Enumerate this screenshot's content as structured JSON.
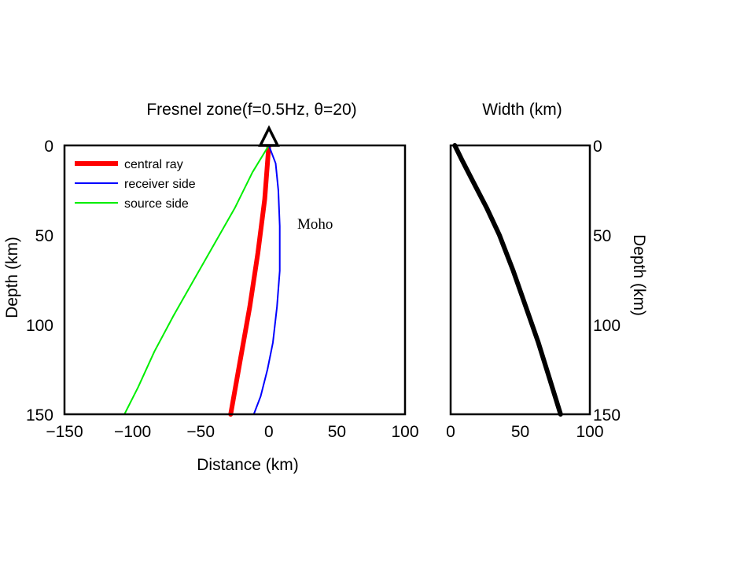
{
  "chart_data": [
    {
      "type": "line",
      "title": "Fresnel zone(f=0.5Hz, θ=20)",
      "xlabel": "Distance (km)",
      "ylabel": "Depth (km)",
      "xlim": [
        -150,
        100
      ],
      "ylim": [
        0,
        150
      ],
      "y_inverted": true,
      "grid": false,
      "legend_position": "top-left",
      "xticks": [
        "−150",
        "−100",
        "−50",
        "0",
        "50",
        "100"
      ],
      "yticks": [
        "0",
        "50",
        "100",
        "150"
      ],
      "station_marker": {
        "shape": "triangle",
        "x": 0,
        "y": 0
      },
      "annotation": "Moho",
      "series": [
        {
          "name": "central ray",
          "color": "#ff0000",
          "x": [
            0,
            -3,
            -8,
            -14,
            -21,
            -28
          ],
          "y": [
            0,
            30,
            60,
            90,
            120,
            150
          ]
        },
        {
          "name": "receiver side",
          "color": "#0000ff",
          "x": [
            0,
            5,
            7,
            8,
            8,
            6,
            3,
            -1,
            -6,
            -11
          ],
          "y": [
            0,
            10,
            25,
            45,
            70,
            90,
            110,
            125,
            140,
            150
          ]
        },
        {
          "name": "source side",
          "color": "#00ee00",
          "x": [
            0,
            -12,
            -25,
            -40,
            -55,
            -70,
            -84,
            -96,
            -106
          ],
          "y": [
            0,
            15,
            35,
            55,
            75,
            95,
            115,
            135,
            150
          ]
        }
      ]
    },
    {
      "type": "line",
      "title": "Width (km)",
      "ylabel": "Depth (km)",
      "xlim": [
        0,
        100
      ],
      "ylim": [
        0,
        150
      ],
      "y_inverted": true,
      "grid": false,
      "xticks": [
        "0",
        "50",
        "100"
      ],
      "yticks": [
        "0",
        "50",
        "100",
        "150"
      ],
      "series": [
        {
          "color": "#000000",
          "x": [
            3,
            8,
            16,
            26,
            35,
            45,
            54,
            63,
            71,
            79
          ],
          "y": [
            0,
            8,
            20,
            35,
            50,
            70,
            90,
            110,
            130,
            150
          ]
        }
      ]
    }
  ]
}
